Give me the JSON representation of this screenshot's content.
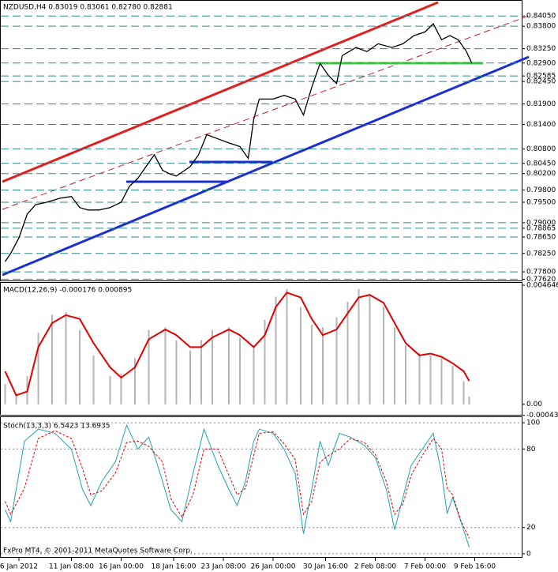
{
  "chart_data": [
    {
      "type": "line",
      "title": "NZDUSD,H4  0.83019 0.83061 0.82780 0.82881",
      "color": "#000000",
      "x": [
        1,
        3,
        6,
        9,
        12,
        16,
        21,
        25,
        28,
        31,
        35,
        39,
        43,
        46,
        49,
        52,
        55,
        58,
        61,
        63,
        68,
        71,
        74,
        78,
        82,
        86,
        89,
        91,
        93,
        98,
        102,
        106,
        109,
        112,
        115,
        118,
        121,
        123,
        128,
        132,
        136,
        141,
        145,
        149,
        153,
        156,
        159,
        162,
        165,
        168,
        170
      ],
      "values": [
        0.7805,
        0.7825,
        0.7863,
        0.7921,
        0.7944,
        0.795,
        0.796,
        0.7964,
        0.7937,
        0.7931,
        0.7931,
        0.7937,
        0.795,
        0.7989,
        0.8008,
        0.8037,
        0.8066,
        0.8028,
        0.8018,
        0.8014,
        0.8037,
        0.8066,
        0.8115,
        0.8105,
        0.8095,
        0.8086,
        0.8057,
        0.8153,
        0.8202,
        0.8202,
        0.8211,
        0.8202,
        0.8163,
        0.8231,
        0.8289,
        0.826,
        0.824,
        0.8308,
        0.8328,
        0.8318,
        0.8337,
        0.8328,
        0.8337,
        0.8357,
        0.8366,
        0.8386,
        0.8347,
        0.8357,
        0.8347,
        0.8318,
        0.8289
      ],
      "xlim": [
        0,
        188
      ],
      "ylim": [
        0.7757,
        0.8444
      ],
      "grid": true,
      "yticks": [
        {
          "value": 0.8405,
          "label": "0.84050"
        },
        {
          "value": 0.838,
          "label": "0.83800"
        },
        {
          "value": 0.8325,
          "label": "0.83250"
        },
        {
          "value": 0.829,
          "label": "0.82900"
        },
        {
          "value": 0.82585,
          "label": "0.82585"
        },
        {
          "value": 0.8245,
          "label": "0.82450"
        },
        {
          "value": 0.819,
          "label": "0.81900"
        },
        {
          "value": 0.814,
          "label": "0.81400"
        },
        {
          "value": 0.808,
          "label": "0.80800"
        },
        {
          "value": 0.8045,
          "label": "0.80450"
        },
        {
          "value": 0.802,
          "label": "0.80200"
        },
        {
          "value": 0.798,
          "label": "0.79800"
        },
        {
          "value": 0.795,
          "label": "0.79500"
        },
        {
          "value": 0.79,
          "label": "0.79000"
        },
        {
          "value": 0.78865,
          "label": "0.78865"
        },
        {
          "value": 0.7865,
          "label": "0.78650"
        },
        {
          "value": 0.7825,
          "label": "0.78250"
        },
        {
          "value": 0.778,
          "label": "0.77800"
        },
        {
          "value": 0.7762,
          "label": "0.77620"
        }
      ]
    },
    {
      "type": "macd",
      "title": "MACD(12,26,9) -0.000176 0.000895",
      "x": [
        1,
        5,
        9,
        13,
        18,
        23,
        28,
        33,
        39,
        43,
        48,
        53,
        59,
        63,
        68,
        72,
        76,
        82,
        86,
        91,
        95,
        99,
        103,
        108,
        112,
        116,
        121,
        125,
        129,
        133,
        138,
        142,
        146,
        151,
        155,
        159,
        163,
        167,
        169
      ],
      "series": [
        {
          "color": "#b4b4b4",
          "style": "histogram",
          "values": [
            0.0008,
            0.0004,
            0.0011,
            0.0028,
            0.0035,
            0.0036,
            0.0029,
            0.0019,
            0.0011,
            0.0012,
            0.0018,
            0.0029,
            0.003,
            0.0025,
            0.0021,
            0.0025,
            0.0029,
            0.003,
            0.0026,
            0.0023,
            0.0033,
            0.0042,
            0.0045,
            0.0038,
            0.0031,
            0.003,
            0.0034,
            0.004,
            0.0045,
            0.0043,
            0.0038,
            0.003,
            0.0023,
            0.002,
            0.0019,
            0.0018,
            0.0015,
            0.0009,
            0.0003
          ]
        },
        {
          "color": "#e00000",
          "style": "line",
          "values": [
            0.00129,
            0.00035,
            0.0005,
            0.00223,
            0.00317,
            0.00348,
            0.00333,
            0.00239,
            0.00144,
            0.00104,
            0.00144,
            0.00254,
            0.00292,
            0.0027,
            0.00223,
            0.00223,
            0.00261,
            0.00292,
            0.0027,
            0.00223,
            0.0027,
            0.0038,
            0.00436,
            0.00417,
            0.00333,
            0.0027,
            0.00292,
            0.00355,
            0.00417,
            0.00427,
            0.00396,
            0.00317,
            0.00239,
            0.00191,
            0.00198,
            0.00185,
            0.0016,
            0.00129,
            0.00091
          ]
        }
      ],
      "xlim": [
        0,
        188
      ],
      "ylim": [
        -0.00044,
        0.00474
      ],
      "yticks": [
        0.004646,
        {
          "value": 0,
          "label": "0.00"
        },
        -0.00043
      ]
    },
    {
      "type": "stoch",
      "title": "Stoch(13,3,3) 6.5423 13.6935",
      "x": [
        1,
        3,
        8,
        13,
        19,
        25,
        29,
        32,
        36,
        41,
        45,
        49,
        53,
        58,
        61,
        65,
        69,
        73,
        78,
        82,
        85,
        88,
        91,
        93,
        98,
        102,
        106,
        109,
        112,
        115,
        118,
        122,
        126,
        131,
        135,
        139,
        142,
        145,
        148,
        152,
        156,
        159,
        161,
        163,
        166,
        169
      ],
      "series": [
        {
          "color": "#20a0b0",
          "style": "solid",
          "values": [
            33.7,
            24.5,
            85.9,
            95.1,
            92.0,
            79.8,
            49.1,
            36.8,
            55.2,
            70.6,
            98.2,
            79.8,
            89.0,
            55.2,
            33.7,
            24.5,
            61.3,
            95.1,
            67.5,
            49.1,
            36.8,
            55.2,
            85.9,
            95.1,
            92.0,
            79.8,
            61.3,
            15.3,
            49.1,
            85.9,
            67.5,
            92.0,
            89.0,
            82.8,
            73.6,
            49.1,
            18.4,
            42.9,
            67.5,
            79.8,
            92.0,
            61.3,
            30.7,
            42.9,
            24.5,
            4.9
          ]
        },
        {
          "color": "#e00000",
          "style": "dashed",
          "values": [
            40,
            30,
            50,
            88,
            94,
            88,
            65,
            45,
            48,
            62,
            85,
            86,
            82,
            70,
            42,
            28,
            45,
            80,
            80,
            60,
            45,
            50,
            75,
            92,
            93,
            84,
            72,
            30,
            40,
            70,
            75,
            80,
            88,
            85,
            76,
            55,
            30,
            38,
            60,
            75,
            88,
            80,
            50,
            45,
            25,
            12
          ]
        }
      ],
      "xlim": [
        0,
        188
      ],
      "ylim": [
        -3.1,
        104.3
      ],
      "grid": true,
      "yticks": [
        100,
        80,
        20,
        0
      ],
      "xticks": [
        {
          "value": 6,
          "label": "6 Jan 2012"
        },
        {
          "value": 25,
          "label": "11 Jan 08:00"
        },
        {
          "value": 43,
          "label": "16 Jan 00:00"
        },
        {
          "value": 62,
          "label": "18 Jan 16:00"
        },
        {
          "value": 80,
          "label": "23 Jan 08:00"
        },
        {
          "value": 98,
          "label": "26 Jan 00:00"
        },
        {
          "value": 117,
          "label": "30 Jan 16:00"
        },
        {
          "value": 135,
          "label": "2 Feb 08:00"
        },
        {
          "value": 153,
          "label": "7 Feb 00:00"
        },
        {
          "value": 171,
          "label": "9 Feb 16:00"
        }
      ]
    }
  ],
  "footer": "FxPro MT4, © 2001-2011 MetaQuotes Software Corp."
}
